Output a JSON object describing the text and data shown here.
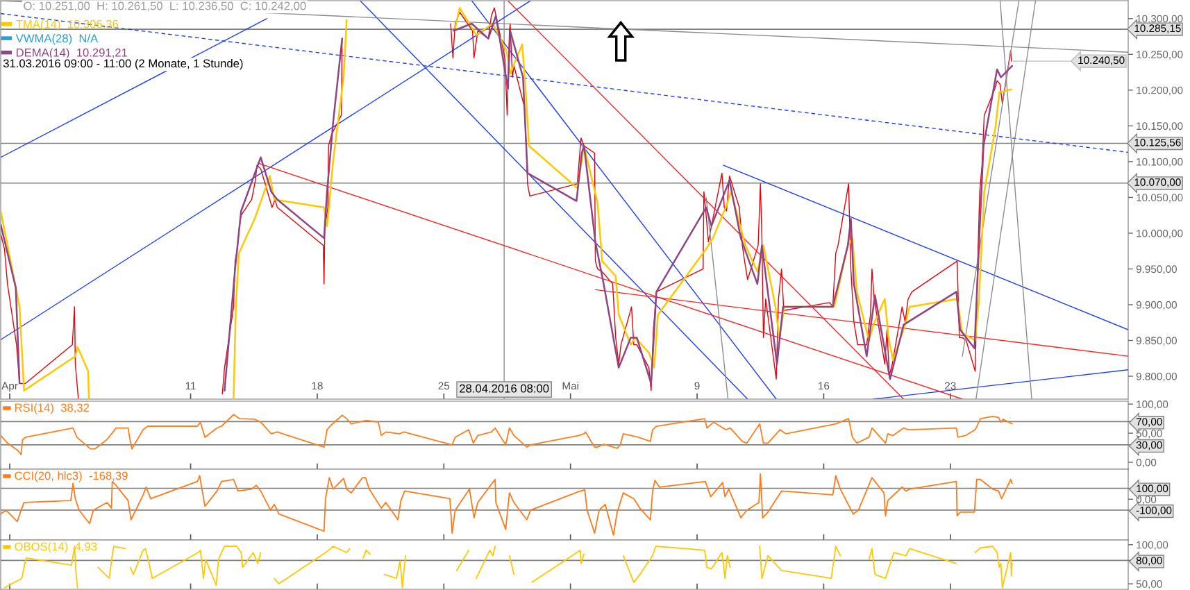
{
  "chart_data": [
    {
      "type": "line",
      "xlim": [
        "2016-03-31T12:00",
        "2016-06-01T20:00"
      ],
      "ylim": [
        9768,
        10325
      ],
      "xticks": [
        {
          "value": "2016-04-01",
          "label": "Apr"
        },
        {
          "value": "2016-04-11",
          "label": "11"
        },
        {
          "value": "2016-04-18",
          "label": "18"
        },
        {
          "value": "2016-04-25",
          "label": "25"
        },
        {
          "value": "2016-05-02",
          "label": "Mai"
        },
        {
          "value": "2016-05-09",
          "label": "9"
        },
        {
          "value": "2016-05-16",
          "label": "16"
        },
        {
          "value": "2016-05-23",
          "label": "23"
        }
      ],
      "yticks": [
        {
          "value": 9800,
          "label": "9.800,00"
        },
        {
          "value": 9850,
          "label": "9.850,00"
        },
        {
          "value": 9900,
          "label": "9.900,00"
        },
        {
          "value": 9950,
          "label": "9.950,00"
        },
        {
          "value": 10000,
          "label": "10.000,00"
        },
        {
          "value": 10050,
          "label": "10.050,00"
        },
        {
          "value": 10100,
          "label": "10.100,00"
        },
        {
          "value": 10150,
          "label": "10.150,00"
        },
        {
          "value": 10200,
          "label": "10.200,00"
        },
        {
          "value": 10250,
          "label": "10.250,00"
        },
        {
          "value": 10300,
          "label": "10.300,00"
        }
      ],
      "legend": "top left",
      "annotations": [
        "O: 10.251,00  H: 10.261,50  L: 10.236,50  C: 10.242,00",
        "31.03.2016 09:00 - 11:00 (2 Monate, 1 Stunde)",
        {
          "text": "10.240,50",
          "x": "2016-05-26T09:00",
          "y": 10240.5
        }
      ],
      "ref_lines": [
        {
          "axis": "y",
          "value": 10285.15,
          "label": "10.285,15",
          "color": "#808080"
        },
        {
          "axis": "y",
          "value": 10125.56,
          "label": "10.125,56",
          "color": "#808080"
        },
        {
          "axis": "y",
          "value": 10070,
          "label": "10.070,00",
          "color": "#808080"
        },
        {
          "axis": "x",
          "value": "2016-04-28T08:00",
          "label": "28.04.2016 08:00",
          "color": "#a0a0a0"
        }
      ],
      "series": [
        {
          "color": "#e8000b",
          "x": [
            "2016-03-31T12:00",
            "2016-03-31T17:00",
            "2016-03-31T21:00",
            "2016-04-01T09:00",
            "2016-04-01T13:00",
            "2016-04-01T16:00",
            "2016-04-01T21:00",
            "2016-04-04T11:00",
            "2016-04-04T14:00",
            "2016-04-04T15:00",
            "2016-04-04T19:00",
            "2016-04-08T08:00",
            "2016-04-12T18:00",
            "2016-04-12T21:00",
            "2016-04-13T09:00",
            "2016-04-13T11:00",
            "2016-04-13T14:00",
            "2016-04-13T16:00",
            "2016-04-13T19:00",
            "2016-04-14T09:00",
            "2016-04-14T14:00",
            "2016-04-14T16:00",
            "2016-04-14T21:00",
            "2016-04-15T09:00",
            "2016-04-15T12:00",
            "2016-04-15T16:00",
            "2016-04-15T19:00",
            "2016-04-18T08:00",
            "2016-04-18T09:00",
            "2016-04-18T10:00",
            "2016-04-18T14:00",
            "2016-04-18T15:00",
            "2016-04-18T19:00",
            "2016-04-19T08:00",
            "2016-04-19T09:00",
            "2016-04-20T15:00",
            "2016-04-25T09:00",
            "2016-04-25T12:00",
            "2016-04-25T15:00",
            "2016-04-25T21:00",
            "2016-04-26T14:00",
            "2016-04-26T16:00",
            "2016-04-26T21:00",
            "2016-04-27T11:00",
            "2016-04-27T15:00",
            "2016-04-27T19:00",
            "2016-04-28T09:00",
            "2016-04-28T12:00",
            "2016-04-28T15:00",
            "2016-04-28T16:00",
            "2016-04-28T19:00",
            "2016-04-28T21:00",
            "2016-04-29T11:00",
            "2016-04-29T14:00",
            "2016-04-29T15:00",
            "2016-04-29T18:00",
            "2016-05-02T09:00",
            "2016-05-02T14:00",
            "2016-05-02T18:00",
            "2016-05-03T08:00",
            "2016-05-03T09:00",
            "2016-05-03T12:00",
            "2016-05-03T18:00",
            "2016-05-04T08:00",
            "2016-05-04T12:00",
            "2016-05-04T16:00",
            "2016-05-04T19:00",
            "2016-05-05T09:00",
            "2016-05-05T12:00",
            "2016-05-05T16:00",
            "2016-05-06T08:00",
            "2016-05-06T11:00",
            "2016-05-06T14:00",
            "2016-05-06T18:00",
            "2016-05-09T08:00",
            "2016-05-09T09:00",
            "2016-05-09T12:00",
            "2016-05-09T15:00",
            "2016-05-09T19:00",
            "2016-05-10T09:00",
            "2016-05-10T12:00",
            "2016-05-10T15:00",
            "2016-05-10T19:00",
            "2016-05-11T08:00",
            "2016-05-11T12:00",
            "2016-05-11T15:00",
            "2016-05-11T19:00",
            "2016-05-12T09:00",
            "2016-05-12T12:00",
            "2016-05-12T14:00",
            "2016-05-12T16:00",
            "2016-05-12T19:00",
            "2016-05-13T09:00",
            "2016-05-13T12:00",
            "2016-05-13T16:00",
            "2016-05-13T19:00",
            "2016-05-16T08:00",
            "2016-05-16T12:00",
            "2016-05-16T16:00",
            "2016-05-16T19:00",
            "2016-05-17T09:00",
            "2016-05-17T12:00",
            "2016-05-17T16:00",
            "2016-05-17T21:00",
            "2016-05-18T09:00",
            "2016-05-18T14:00",
            "2016-05-18T16:00",
            "2016-05-18T19:00",
            "2016-05-19T09:00",
            "2016-05-19T12:00",
            "2016-05-19T15:00",
            "2016-05-19T19:00",
            "2016-05-20T08:00",
            "2016-05-20T12:00",
            "2016-05-20T16:00",
            "2016-05-20T21:00",
            "2016-05-23T09:00",
            "2016-05-23T12:00",
            "2016-05-23T16:00",
            "2016-05-23T21:00",
            "2016-05-24T09:00",
            "2016-05-24T12:00",
            "2016-05-24T15:00",
            "2016-05-24T18:00",
            "2016-05-24T21:00",
            "2016-05-25T11:00",
            "2016-05-25T14:00",
            "2016-05-25T18:00",
            "2016-05-25T21:00",
            "2016-05-26T08:00",
            "2016-05-26T09:00"
          ],
          "values": [
            9999,
            9978,
            9929,
            9844,
            9790,
            9790,
            9790,
            9844,
            9897,
            9817,
            9769,
            null,
            9775,
            9812,
            9897,
            9961,
            9978,
            10004,
            10025,
            10047,
            10074,
            10095,
            10090,
            10047,
            10036,
            10047,
            10036,
            9983,
            9929,
            10004,
            10036,
            10122,
            10138,
            10165,
            10272,
            null,
            10293,
            10245,
            10293,
            10309,
            10283,
            10245,
            10283,
            10272,
            10304,
            10315,
            10245,
            10165,
            10283,
            10293,
            10218,
            10234,
            10176,
            10101,
            10069,
            10052,
            10069,
            10133,
            10122,
            10112,
            9961,
            9950,
            9946,
            9929,
            9854,
            9817,
            9844,
            9897,
            9844,
            9844,
            9812,
            9780,
            9865,
            9918,
            9950,
            10058,
            10025,
            9988,
            10010,
            10084,
            10036,
            10031,
            10080,
            10036,
            9983,
            9961,
            9935,
            9983,
            10069,
            9993,
            9854,
            9908,
            9796,
            9908,
            9950,
            9892,
            9903,
            9897,
            9972,
            9983,
            10069,
            9950,
            9876,
            9844,
            9844,
            9886,
            9950,
            9908,
            9817,
            9865,
            9801,
            9817,
            9897,
            9876,
            9908,
            9918,
            9961,
            9854,
            9854,
            9850,
            9807,
            9950,
            10058,
            10095,
            10165,
            10202,
            10213,
            10208,
            10181,
            10255,
            10240.5
          ]
        },
        {
          "name": "TMA(14)  10.306,36",
          "color": "#ffc800",
          "x": [
            "2016-03-31T12:00",
            "2016-03-31T21:00",
            "2016-04-01T13:00",
            "2016-04-01T19:00",
            "2016-04-04T15:00",
            "2016-04-04T18:00",
            "2016-04-05T08:00",
            "2016-04-05T09:00",
            "2016-04-08T08:00",
            "2016-04-13T09:00",
            "2016-04-13T12:00",
            "2016-04-13T16:00",
            "2016-04-14T13:00",
            "2016-04-15T09:00",
            "2016-04-15T15:00",
            "2016-04-18T09:00",
            "2016-04-18T13:00",
            "2016-04-18T16:00",
            "2016-04-18T21:00",
            "2016-04-19T11:00",
            "2016-04-19T15:00",
            "2016-04-21T08:00",
            "2016-04-25T15:00",
            "2016-04-25T21:00",
            "2016-04-26T19:00",
            "2016-04-27T17:00",
            "2016-04-28T11:00",
            "2016-04-28T16:00",
            "2016-04-29T08:00",
            "2016-04-29T13:00",
            "2016-04-29T17:00",
            "2016-05-02T09:00",
            "2016-05-02T15:00",
            "2016-05-02T18:00",
            "2016-05-03T12:00",
            "2016-05-03T18:00",
            "2016-05-04T12:00",
            "2016-05-04T16:00",
            "2016-05-05T08:00",
            "2016-05-05T14:00",
            "2016-05-06T08:00",
            "2016-05-06T15:00",
            "2016-05-06T20:00",
            "2016-05-09T12:00",
            "2016-05-09T21:00",
            "2016-05-10T14:00",
            "2016-05-10T21:00",
            "2016-05-11T16:00",
            "2016-05-12T08:00",
            "2016-05-12T16:00",
            "2016-05-13T08:00",
            "2016-05-13T13:00",
            "2016-05-13T20:00",
            "2016-05-16T14:00",
            "2016-05-17T08:00",
            "2016-05-17T14:00",
            "2016-05-17T20:00",
            "2016-05-18T12:00",
            "2016-05-18T18:00",
            "2016-05-19T09:00",
            "2016-05-19T14:00",
            "2016-05-19T20:00",
            "2016-05-20T12:00",
            "2016-05-20T18:00",
            "2016-05-23T09:00",
            "2016-05-23T16:00",
            "2016-05-24T09:00",
            "2016-05-24T14:00",
            "2016-05-24T21:00",
            "2016-05-25T12:00",
            "2016-05-25T17:00",
            "2016-05-26T09:00"
          ],
          "values": [
            10031,
            9983,
            9897,
            9780,
            9828,
            9841,
            9807,
            9769,
            null,
            9769,
            9897,
            9972,
            10020,
            10080,
            10047,
            10036,
            10010,
            10042,
            10101,
            10218,
            10298,
            null,
            10287,
            10315,
            10277,
            10293,
            10255,
            10223,
            10264,
            10191,
            10122,
            10063,
            10101,
            10122,
            10042,
            9961,
            9940,
            9886,
            9844,
            9854,
            9833,
            9812,
            9886,
            9978,
            9993,
            10036,
            10058,
            9983,
            9946,
            9983,
            9897,
            9854,
            9897,
            9897,
            9983,
            9993,
            9918,
            9850,
            9872,
            9908,
            9854,
            9822,
            9872,
            9897,
            9908,
            9860,
            9850,
            9908,
            10058,
            10149,
            10197,
            10201
          ]
        },
        {
          "name": "VWMA(28)  N/A",
          "color": "#2a9fd6"
        },
        {
          "name": "DEMA(14)  10.291,21",
          "color": "#8e4585",
          "x": [
            "2016-03-31T12:00",
            "2016-04-01T08:00",
            "2016-04-01T13:00",
            "2016-04-07T08:00",
            "2016-04-12T21:00",
            "2016-04-13T11:00",
            "2016-04-13T19:00",
            "2016-04-14T21:00",
            "2016-04-15T11:00",
            "2016-04-15T19:00",
            "2016-04-18T09:00",
            "2016-04-18T13:00",
            "2016-04-18T21:00",
            "2016-04-19T09:00",
            "2016-04-21T08:00",
            "2016-04-25T13:00",
            "2016-04-26T13:00",
            "2016-04-27T11:00",
            "2016-04-27T21:00",
            "2016-04-28T13:00",
            "2016-04-28T16:00",
            "2016-04-29T09:00",
            "2016-04-29T15:00",
            "2016-05-02T08:00",
            "2016-05-02T15:00",
            "2016-05-02T18:00",
            "2016-05-03T09:00",
            "2016-05-03T20:00",
            "2016-05-04T16:00",
            "2016-05-05T08:00",
            "2016-05-05T16:00",
            "2016-05-06T11:00",
            "2016-05-06T18:00",
            "2016-05-09T12:00",
            "2016-05-09T19:00",
            "2016-05-10T19:00",
            "2016-05-11T10:00",
            "2016-05-12T08:00",
            "2016-05-12T14:00",
            "2016-05-13T10:00",
            "2016-05-13T18:00",
            "2016-05-16T12:00",
            "2016-05-17T08:00",
            "2016-05-17T12:00",
            "2016-05-17T16:00",
            "2016-05-18T09:00",
            "2016-05-18T20:00",
            "2016-05-19T16:00",
            "2016-05-20T10:00",
            "2016-05-23T08:00",
            "2016-05-23T13:00",
            "2016-05-24T08:00",
            "2016-05-24T14:00",
            "2016-05-24T20:00",
            "2016-05-25T14:00",
            "2016-05-25T19:00",
            "2016-05-26T10:00"
          ],
          "values": [
            10012,
            9924,
            9790,
            null,
            9780,
            9950,
            10031,
            10106,
            10058,
            10047,
            9993,
            10058,
            10154,
            10272,
            null,
            10283,
            10293,
            10272,
            10304,
            10202,
            10283,
            10218,
            10084,
            10045,
            10112,
            10122,
            9988,
            9929,
            9812,
            9854,
            9854,
            9790,
            9918,
            10036,
            10010,
            10074,
            9993,
            9929,
            9983,
            9817,
            9897,
            9897,
            9983,
            10020,
            9929,
            9828,
            9913,
            9796,
            9872,
            9918,
            9865,
            9839,
            9983,
            10122,
            10229,
            10218,
            10234
          ]
        },
        {
          "color": "#1a3cff",
          "x": [
            "2016-03-31T12:00",
            "2016-04-15T05:00"
          ],
          "values": [
            10106,
            10300
          ]
        },
        {
          "color": "#1a3cff",
          "x": [
            "2016-03-31T12:00",
            "2016-04-29T19:00"
          ],
          "values": [
            9851,
            10325
          ]
        },
        {
          "color": "#1a3cff",
          "x": [
            "2016-04-20T09:00",
            "2016-05-11T19:00"
          ],
          "values": [
            10325,
            9768
          ]
        },
        {
          "color": "#1a3cff",
          "x": [
            "2016-04-26T13:00",
            "2016-05-13T09:00"
          ],
          "values": [
            10325,
            9768
          ]
        },
        {
          "color": "#1a3cff",
          "x": [
            "2016-05-10T11:00",
            "2016-06-01T20:00"
          ],
          "values": [
            10095,
            9865
          ]
        },
        {
          "color": "#1a3cff",
          "x": [
            "2016-05-18T18:00",
            "2016-06-01T20:00"
          ],
          "values": [
            9768,
            9809
          ]
        },
        {
          "color": "#1a3cff",
          "line_style": "dashed",
          "x": [
            "2016-03-31T12:00",
            "2016-06-01T20:00"
          ],
          "values": [
            10307,
            10113
          ]
        },
        {
          "color": "#ff2020",
          "x": [
            "2016-04-28T13:00",
            "2016-05-20T10:00"
          ],
          "values": [
            10325,
            9768
          ]
        },
        {
          "color": "#ff2020",
          "x": [
            "2016-04-14T17:00",
            "2016-05-23T16:00"
          ],
          "values": [
            10098,
            9768
          ]
        },
        {
          "color": "#ff2020",
          "x": [
            "2016-05-03T09:00",
            "2016-06-01T20:00"
          ],
          "values": [
            9921,
            9828
          ]
        },
        {
          "color": "#8c8c8c",
          "x": [
            "2016-03-31T12:00",
            "2016-06-01T20:00"
          ],
          "values": [
            10325,
            10253
          ]
        },
        {
          "color": "#8c8c8c",
          "x": [
            "2016-05-25T18:00",
            "2016-05-27T12:00"
          ],
          "values": [
            10325,
            9768
          ]
        },
        {
          "color": "#8c8c8c",
          "x": [
            "2016-05-26T19:00",
            "2016-05-23T16:00"
          ],
          "values": [
            10325,
            9828
          ]
        },
        {
          "color": "#8c8c8c",
          "x": [
            "2016-05-27T17:00",
            "2016-05-24T10:00"
          ],
          "values": [
            10325,
            9768
          ]
        },
        {
          "color": "#8c8c8c",
          "x": [
            "2016-05-09T12:00",
            "2016-05-10T17:00"
          ],
          "values": [
            10050,
            9768
          ]
        }
      ]
    },
    {
      "type": "line",
      "xlim": [
        "2016-03-31T12:00",
        "2016-06-01T20:00"
      ],
      "ylim": [
        -12,
        105
      ],
      "tick_labels": "y",
      "xticks": [
        {
          "value": "2016-04-01",
          "label": null
        },
        {
          "value": "2016-04-11",
          "label": null
        },
        {
          "value": "2016-04-18",
          "label": null
        },
        {
          "value": "2016-04-25",
          "label": null
        },
        {
          "value": "2016-05-02",
          "label": null
        },
        {
          "value": "2016-05-09",
          "label": null
        },
        {
          "value": "2016-05-16",
          "label": null
        },
        {
          "value": "2016-05-23",
          "label": null
        }
      ],
      "yticks": [
        {
          "value": 0,
          "label": "0,00"
        },
        {
          "value": 30,
          "label": "30,00"
        },
        {
          "value": 50,
          "label": "50,00"
        },
        {
          "value": 70,
          "label": "70,00"
        },
        {
          "value": 100,
          "label": "100,00"
        }
      ],
      "ref_lines": [
        {
          "axis": "y",
          "value": 70,
          "color": "#808080"
        },
        {
          "axis": "y",
          "value": 30,
          "color": "#808080"
        }
      ],
      "series": [
        {
          "name": "RSI(14)  38,32",
          "color": "#ff7f1e",
          "x": [
            "2016-03-31T12:00",
            "2016-03-31T21:00",
            "2016-04-01T11:00",
            "2016-04-01T15:00",
            "2016-04-01T17:00",
            "2016-04-01T21:00",
            "2016-04-04T12:00",
            "2016-04-04T17:00",
            "2016-04-05T11:00",
            "2016-04-05T17:00",
            "2016-04-06T09:00",
            "2016-04-06T17:00",
            "2016-04-06T21:00",
            "2016-04-07T13:00",
            "2016-04-07T15:00",
            "2016-04-07T18:00",
            "2016-04-08T09:00",
            "2016-04-08T15:00",
            "2016-04-11T09:00",
            "2016-04-11T13:00",
            "2016-04-11T19:00",
            "2016-04-12T11:00",
            "2016-04-12T17:00",
            "2016-04-13T09:00",
            "2016-04-13T17:00",
            "2016-04-14T13:00",
            "2016-04-14T21:00",
            "2016-04-15T11:00",
            "2016-04-15T19:00",
            "2016-04-18T09:00",
            "2016-04-18T13:00",
            "2016-04-18T17:00",
            "2016-04-19T09:00",
            "2016-04-19T15:00",
            "2016-04-19T21:00",
            "2016-04-20T17:00",
            "2016-04-21T09:00",
            "2016-04-21T13:00",
            "2016-04-21T19:00",
            "2016-04-22T13:00",
            "2016-04-22T19:00",
            "2016-04-25T11:00",
            "2016-04-25T15:00",
            "2016-04-26T09:00",
            "2016-04-26T15:00",
            "2016-04-26T21:00",
            "2016-04-27T15:00",
            "2016-04-27T20:00",
            "2016-04-28T10:00",
            "2016-04-28T15:00",
            "2016-04-28T21:00",
            "2016-04-29T14:00",
            "2016-04-29T19:00",
            "2016-05-02T11:00",
            "2016-05-02T18:00",
            "2016-05-02T20:00",
            "2016-05-03T08:00",
            "2016-05-03T12:00",
            "2016-05-03T20:00",
            "2016-05-04T14:00",
            "2016-05-04T18:00",
            "2016-05-04T22:00",
            "2016-05-05T18:00",
            "2016-05-06T10:00",
            "2016-05-06T13:00",
            "2016-05-06T18:00",
            "2016-05-09T10:00",
            "2016-05-09T13:00",
            "2016-05-09T22:00",
            "2016-05-10T14:00",
            "2016-05-10T20:00",
            "2016-05-11T12:00",
            "2016-05-11T18:00",
            "2016-05-12T11:00",
            "2016-05-12T16:00",
            "2016-05-12T22:00",
            "2016-05-13T14:00",
            "2016-05-13T22:00",
            "2016-05-16T16:00",
            "2016-05-17T09:00",
            "2016-05-17T14:00",
            "2016-05-17T20:00",
            "2016-05-18T12:00",
            "2016-05-18T16:00",
            "2016-05-19T10:00",
            "2016-05-19T13:00",
            "2016-05-19T20:00",
            "2016-05-20T10:00",
            "2016-05-20T16:00",
            "2016-05-23T08:00",
            "2016-05-23T10:00",
            "2016-05-23T20:00",
            "2016-05-24T09:00",
            "2016-05-24T16:00",
            "2016-05-25T08:00",
            "2016-05-25T16:00",
            "2016-05-25T19:00",
            "2016-05-25T22:00",
            "2016-05-26T10:00"
          ],
          "values": [
            46,
            33,
            20,
            13,
            39,
            43,
            59,
            43,
            23,
            23,
            39,
            52,
            59,
            59,
            43,
            23,
            56,
            62,
            62,
            69,
            43,
            59,
            62,
            82,
            75,
            74,
            69,
            49,
            52,
            26,
            56,
            62,
            81,
            75,
            66,
            72,
            69,
            46,
            52,
            49,
            52,
            30,
            43,
            56,
            33,
            46,
            52,
            59,
            30,
            59,
            46,
            26,
            30,
            46,
            49,
            52,
            26,
            26,
            31,
            24,
            30,
            49,
            43,
            36,
            56,
            62,
            75,
            59,
            69,
            56,
            59,
            36,
            33,
            66,
            33,
            33,
            56,
            49,
            66,
            75,
            43,
            33,
            43,
            59,
            33,
            49,
            46,
            59,
            56,
            59,
            43,
            46,
            56,
            75,
            79,
            77,
            69,
            74,
            66
          ]
        }
      ]
    },
    {
      "type": "line",
      "xlim": [
        "2016-03-31T12:00",
        "2016-06-01T20:00"
      ],
      "ylim": [
        -374,
        275
      ],
      "tick_labels": "y",
      "xticks": [
        {
          "value": "2016-04-01",
          "label": null
        },
        {
          "value": "2016-04-11",
          "label": null
        },
        {
          "value": "2016-04-18",
          "label": null
        },
        {
          "value": "2016-04-25",
          "label": null
        },
        {
          "value": "2016-05-02",
          "label": null
        },
        {
          "value": "2016-05-09",
          "label": null
        },
        {
          "value": "2016-05-16",
          "label": null
        },
        {
          "value": "2016-05-23",
          "label": null
        }
      ],
      "yticks": [
        {
          "value": -100,
          "label": "-100,00"
        },
        {
          "value": 0,
          "label": "0,00"
        },
        {
          "value": 100,
          "label": "100,00"
        }
      ],
      "ref_lines": [
        {
          "axis": "y",
          "value": 100,
          "color": "#808080"
        },
        {
          "axis": "y",
          "value": -100,
          "color": "#808080"
        }
      ],
      "series": [
        {
          "name": "CCI(20, hlc3)  -168,39",
          "color": "#ff7a1a",
          "x": [
            "2016-03-31T12:00",
            "2016-03-31T19:00",
            "2016-04-01T10:00",
            "2016-04-01T15:00",
            "2016-04-01T19:00",
            "2016-04-04T09:00",
            "2016-04-04T12:00",
            "2016-04-04T15:00",
            "2016-04-04T20:00",
            "2016-04-05T10:00",
            "2016-04-05T15:00",
            "2016-04-06T09:00",
            "2016-04-06T15:00",
            "2016-04-06T16:00",
            "2016-04-06T21:00",
            "2016-04-07T13:00",
            "2016-04-07T17:00",
            "2016-04-08T09:00",
            "2016-04-08T13:00",
            "2016-04-08T19:00",
            "2016-04-11T09:00",
            "2016-04-11T12:00",
            "2016-04-11T15:00",
            "2016-04-11T19:00",
            "2016-04-12T11:00",
            "2016-04-12T17:00",
            "2016-04-13T09:00",
            "2016-04-13T15:00",
            "2016-04-14T09:00",
            "2016-04-14T15:00",
            "2016-04-14T21:00",
            "2016-04-15T10:00",
            "2016-04-15T15:00",
            "2016-04-15T21:00",
            "2016-04-18T09:00",
            "2016-04-18T11:00",
            "2016-04-18T16:00",
            "2016-04-18T21:00",
            "2016-04-19T11:00",
            "2016-04-19T15:00",
            "2016-04-19T21:00",
            "2016-04-20T12:00",
            "2016-04-20T16:00",
            "2016-04-20T21:00",
            "2016-04-21T13:00",
            "2016-04-21T19:00",
            "2016-04-22T11:00",
            "2016-04-22T15:00",
            "2016-04-22T20:00",
            "2016-04-25T08:00",
            "2016-04-25T11:00",
            "2016-04-25T15:00",
            "2016-04-26T10:00",
            "2016-04-26T16:00",
            "2016-04-26T21:00",
            "2016-04-27T14:00",
            "2016-04-27T20:00",
            "2016-04-27T21:00",
            "2016-04-28T10:00",
            "2016-04-28T15:00",
            "2016-04-28T21:00",
            "2016-04-29T14:00",
            "2016-04-29T19:00",
            "2016-05-02T13:00",
            "2016-05-02T14:00",
            "2016-05-02T19:00",
            "2016-05-02T22:00",
            "2016-05-03T08:00",
            "2016-05-03T14:00",
            "2016-05-03T22:00",
            "2016-05-04T09:00",
            "2016-05-04T14:00",
            "2016-05-04T22:00",
            "2016-05-05T12:00",
            "2016-05-05T20:00",
            "2016-05-06T10:00",
            "2016-05-06T13:00",
            "2016-05-06T16:00",
            "2016-05-06T22:00",
            "2016-05-09T11:00",
            "2016-05-09T18:00",
            "2016-05-10T10:00",
            "2016-05-10T13:00",
            "2016-05-10T18:00",
            "2016-05-11T10:00",
            "2016-05-11T18:00",
            "2016-05-12T10:00",
            "2016-05-12T12:00",
            "2016-05-12T15:00",
            "2016-05-12T22:00",
            "2016-05-13T16:00",
            "2016-05-16T12:00",
            "2016-05-16T16:00",
            "2016-05-16T22:00",
            "2016-05-17T15:00",
            "2016-05-17T22:00",
            "2016-05-18T16:00",
            "2016-05-19T08:00",
            "2016-05-19T10:00",
            "2016-05-19T13:00",
            "2016-05-20T08:00",
            "2016-05-20T13:00",
            "2016-05-20T18:00",
            "2016-05-23T08:00",
            "2016-05-23T09:00",
            "2016-05-23T13:00",
            "2016-05-24T08:00",
            "2016-05-24T11:00",
            "2016-05-24T16:00",
            "2016-05-25T08:00",
            "2016-05-25T16:00",
            "2016-05-25T20:00",
            "2016-05-26T08:00",
            "2016-05-26T10:00"
          ],
          "values": [
            -135,
            -100,
            -205,
            -100,
            -30,
            -12,
            146,
            5,
            -100,
            -223,
            -100,
            -30,
            -82,
            163,
            128,
            -12,
            -188,
            40,
            111,
            5,
            163,
            216,
            93,
            -65,
            75,
            163,
            181,
            75,
            93,
            128,
            75,
            -100,
            -47,
            -135,
            -293,
            5,
            198,
            93,
            191,
            93,
            58,
            198,
            198,
            93,
            -82,
            -30,
            -188,
            -12,
            75,
            5,
            -311,
            -100,
            93,
            -170,
            -30,
            128,
            181,
            -30,
            -276,
            58,
            -30,
            -188,
            -100,
            75,
            75,
            86,
            -100,
            -311,
            -100,
            -47,
            -328,
            -118,
            58,
            5,
            -82,
            -188,
            75,
            174,
            111,
            163,
            23,
            153,
            23,
            93,
            -170,
            -100,
            -30,
            233,
            -170,
            -118,
            75,
            40,
            216,
            93,
            -135,
            -100,
            198,
            58,
            -153,
            -12,
            111,
            75,
            93,
            163,
            -153,
            -118,
            -118,
            181,
            181,
            93,
            75,
            5,
            181,
            146
          ]
        }
      ]
    },
    {
      "type": "line",
      "xlim": [
        "2016-03-31T12:00",
        "2016-06-01T20:00"
      ],
      "ylim": [
        43,
        106
      ],
      "tick_labels": "y",
      "xticks": [
        {
          "value": "2016-04-01",
          "label": null
        },
        {
          "value": "2016-04-11",
          "label": null
        },
        {
          "value": "2016-04-18",
          "label": null
        },
        {
          "value": "2016-04-25",
          "label": null
        },
        {
          "value": "2016-05-02",
          "label": null
        },
        {
          "value": "2016-05-09",
          "label": null
        },
        {
          "value": "2016-05-16",
          "label": null
        },
        {
          "value": "2016-05-23",
          "label": null
        }
      ],
      "yticks": [
        {
          "value": 50,
          "label": "50,00"
        },
        {
          "value": 80,
          "label": "80,00"
        },
        {
          "value": 100,
          "label": "100,00"
        }
      ],
      "ref_lines": [
        {
          "axis": "y",
          "value": 80,
          "color": "#808080"
        }
      ],
      "series": [
        {
          "name": "OBOS(14)  4,93",
          "color": "#ffc800",
          "x": [
            "2016-03-31T17:00",
            "2016-04-01T16:00",
            "2016-04-01T20:00",
            "2016-04-01T22:00",
            "2016-04-04T10:00",
            "2016-04-04T12:00",
            "2016-04-04T14:00",
            "2016-04-04T16:00",
            "2016-04-04T18:00",
            "2016-04-05T11:00",
            "2016-04-05T21:00",
            "2016-04-06T12:00",
            "2016-04-06T16:00",
            "2016-04-06T18:00",
            "2016-04-07T09:00",
            "2016-04-07T12:00",
            "2016-04-07T16:00",
            "2016-04-07T20:00",
            "2016-04-08T09:00",
            "2016-04-08T12:00",
            "2016-04-08T17:00",
            "2016-04-08T21:00",
            "2016-04-11T10:00",
            "2016-04-11T13:00",
            "2016-04-11T17:00",
            "2016-04-11T20:00",
            "2016-04-12T10:00",
            "2016-04-12T13:00",
            "2016-04-12T17:00",
            "2016-04-12T21:00",
            "2016-04-13T13:00",
            "2016-04-13T19:00",
            "2016-04-13T21:00",
            "2016-04-14T11:00",
            "2016-04-14T17:00",
            "2016-04-14T21:00",
            "2016-04-15T09:00",
            "2016-04-15T15:00",
            "2016-04-15T21:00",
            "2016-04-18T11:00",
            "2016-04-18T15:00",
            "2016-04-18T21:00",
            "2016-04-19T15:00",
            "2016-04-19T19:00",
            "2016-04-20T08:00",
            "2016-04-20T13:00",
            "2016-04-20T17:00",
            "2016-04-20T22:00",
            "2016-04-21T12:00",
            "2016-04-21T17:00",
            "2016-04-22T09:00",
            "2016-04-22T14:00",
            "2016-04-22T17:00",
            "2016-04-22T21:00",
            "2016-04-25T11:00",
            "2016-04-25T17:00",
            "2016-04-26T09:00",
            "2016-04-26T13:00",
            "2016-04-26T19:00",
            "2016-04-27T13:00",
            "2016-04-27T17:00",
            "2016-04-27T20:00",
            "2016-04-28T08:00",
            "2016-04-28T15:00",
            "2016-04-28T21:00",
            "2016-04-29T13:00",
            "2016-04-29T21:00",
            "2016-05-02T13:00",
            "2016-05-02T14:00",
            "2016-05-02T18:00",
            "2016-05-02T22:00",
            "2016-05-03T20:00",
            "2016-05-04T12:00",
            "2016-05-04T22:00",
            "2016-05-05T12:00",
            "2016-05-05T20:00",
            "2016-05-06T13:00",
            "2016-05-06T17:00",
            "2016-05-09T10:00",
            "2016-05-09T13:00",
            "2016-05-09T19:00",
            "2016-05-10T09:00",
            "2016-05-10T13:00",
            "2016-05-10T16:00",
            "2016-05-10T20:00",
            "2016-05-11T12:00",
            "2016-05-12T11:00",
            "2016-05-12T14:00",
            "2016-05-12T22:00",
            "2016-05-13T16:00",
            "2016-05-16T10:00",
            "2016-05-16T16:00",
            "2016-05-16T22:00",
            "2016-05-17T12:00",
            "2016-05-18T12:00",
            "2016-05-18T16:00",
            "2016-05-18T20:00",
            "2016-05-19T10:00",
            "2016-05-19T18:00",
            "2016-05-19T21:00",
            "2016-05-20T13:00",
            "2016-05-20T18:00",
            "2016-05-23T08:00",
            "2016-05-23T10:00",
            "2016-05-24T08:00",
            "2016-05-24T09:00",
            "2016-05-24T16:00",
            "2016-05-25T08:00",
            "2016-05-25T14:00",
            "2016-05-25T17:00",
            "2016-05-25T19:00",
            "2016-05-25T21:00",
            "2016-05-26T08:00",
            "2016-05-26T09:00",
            "2016-05-26T10:00"
          ],
          "values": [
            45,
            57,
            76,
            83,
            74,
            86,
            98,
            62,
            45,
            null,
            71,
            57,
            86,
            98,
            95,
            null,
            71,
            62,
            93,
            95,
            76,
            57,
            90,
            93,
            57,
            81,
            48,
            81,
            90,
            98,
            98,
            90,
            71,
            90,
            76,
            90,
            null,
            57,
            50,
            90,
            93,
            98,
            90,
            95,
            null,
            83,
            93,
            88,
            null,
            62,
            57,
            79,
            45,
            86,
            null,
            67,
            93,
            null,
            57,
            93,
            86,
            98,
            null,
            86,
            62,
            null,
            52,
            93,
            76,
            88,
            null,
            null,
            null,
            86,
            52,
            62,
            86,
            98,
            93,
            71,
            69,
            90,
            57,
            86,
            71,
            null,
            98,
            57,
            86,
            67,
            57,
            98,
            86,
            null,
            81,
            95,
            62,
            57,
            81,
            90,
            86,
            95,
            76,
            null,
            null,
            90,
            96,
            98,
            90,
            71,
            76,
            45,
            90,
            60,
            76
          ]
        }
      ]
    }
  ]
}
